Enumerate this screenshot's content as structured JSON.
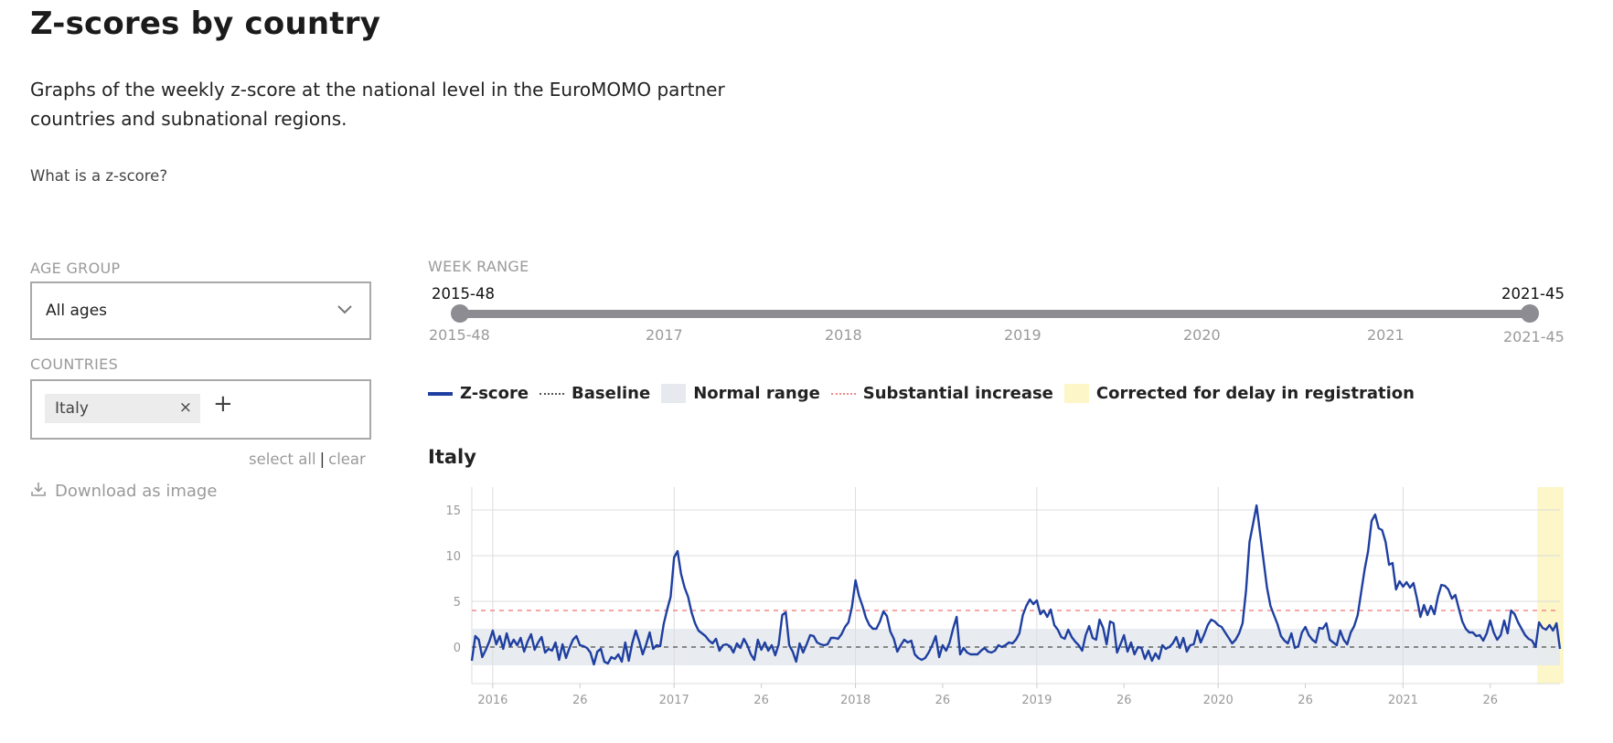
{
  "page": {
    "title": "Z-scores by country",
    "description": "Graphs of the weekly z-score at the national level in the EuroMOMO partner countries and subnational regions.",
    "what_is_link": "What is a z-score?"
  },
  "filters": {
    "age_group_label": "AGE GROUP",
    "age_group_value": "All ages",
    "countries_label": "COUNTRIES",
    "selected_countries": [
      "Italy"
    ],
    "chip_remove": "×",
    "add_country": "+",
    "select_all": "select all",
    "separator": "|",
    "clear": "clear",
    "download": "Download as image"
  },
  "week_range": {
    "label": "WEEK RANGE",
    "start": "2015-48",
    "end": "2021-45",
    "ticks": [
      "2015-48",
      "2017",
      "2018",
      "2019",
      "2020",
      "2021",
      "2021-45"
    ]
  },
  "legend": {
    "zscore": "Z-score",
    "baseline": "Baseline",
    "normal_range": "Normal range",
    "substantial": "Substantial increase",
    "corrected": "Corrected for delay in registration"
  },
  "colors": {
    "zscore": "#1f3fa0",
    "baseline": "#666666",
    "normal_range": "#e6eaee",
    "substantial": "#f0898b",
    "corrected": "#fdf6c8",
    "grid": "#dcdcdc"
  },
  "chart_data": {
    "type": "line",
    "title": "Italy",
    "x_unit": "ISO week",
    "x_start_week": "2015-48",
    "x_ticks": [
      {
        "label": "2016",
        "week": "2016-01"
      },
      {
        "label": "26",
        "week": "2016-26"
      },
      {
        "label": "2017",
        "week": "2017-01"
      },
      {
        "label": "26",
        "week": "2017-26"
      },
      {
        "label": "2018",
        "week": "2018-01"
      },
      {
        "label": "26",
        "week": "2018-26"
      },
      {
        "label": "2019",
        "week": "2019-01"
      },
      {
        "label": "26",
        "week": "2019-26"
      },
      {
        "label": "2020",
        "week": "2020-01"
      },
      {
        "label": "26",
        "week": "2020-26"
      },
      {
        "label": "2021",
        "week": "2021-01"
      },
      {
        "label": "26",
        "week": "2021-26"
      }
    ],
    "y_ticks": [
      0,
      5,
      10,
      15
    ],
    "ylim": [
      -4,
      17.5
    ],
    "baseline": 0,
    "normal_range": [
      -2,
      2
    ],
    "substantial_increase": 4,
    "corrected_weeks": [
      "2021-40",
      "2021-45"
    ],
    "series": [
      {
        "name": "Z-score",
        "values": [
          -1.5,
          1.2,
          0.8,
          -1.1,
          -0.3,
          0.6,
          1.8,
          0.3,
          1.2,
          -0.2,
          1.5,
          0.1,
          0.8,
          0.2,
          1.0,
          -0.5,
          0.6,
          1.4,
          -0.3,
          0.5,
          1.1,
          -0.6,
          -0.2,
          -0.4,
          0.5,
          -1.4,
          0.3,
          -1.2,
          -0.1,
          0.8,
          1.2,
          0.2,
          0.1,
          -0.1,
          -0.6,
          -1.9,
          -0.5,
          -0.2,
          -1.6,
          -1.8,
          -1.1,
          -1.3,
          -0.8,
          -1.6,
          0.5,
          -1.5,
          0.4,
          1.8,
          0.6,
          -0.8,
          0.3,
          1.6,
          -0.2,
          0.2,
          0.1,
          2.5,
          4.1,
          5.5,
          9.8,
          10.5,
          8.0,
          6.5,
          5.5,
          3.8,
          2.6,
          1.8,
          1.5,
          1.2,
          0.7,
          0.4,
          0.9,
          -0.4,
          0.2,
          0.3,
          0.1,
          -0.6,
          0.4,
          -0.1,
          0.9,
          0.2,
          -0.8,
          -1.4,
          0.8,
          -0.3,
          0.5,
          -0.4,
          0.2,
          -0.9,
          0.3,
          3.5,
          3.8,
          0.2,
          -0.5,
          -1.6,
          0.4,
          -0.6,
          0.3,
          1.3,
          1.2,
          0.5,
          0.3,
          0.2,
          0.3,
          1.0,
          1.0,
          0.9,
          1.4,
          2.2,
          2.7,
          4.4,
          7.3,
          5.6,
          4.5,
          3.2,
          2.4,
          2.0,
          2.0,
          2.8,
          3.9,
          3.4,
          1.7,
          0.9,
          -0.5,
          0.2,
          0.8,
          0.5,
          0.7,
          -0.8,
          -1.2,
          -1.4,
          -1.2,
          -0.6,
          0.2,
          1.2,
          -1.1,
          0.2,
          -0.4,
          0.5,
          2.0,
          3.3,
          -0.8,
          -0.1,
          -0.6,
          -0.8,
          -0.8,
          -0.8,
          -0.4,
          -0.1,
          -0.5,
          -0.6,
          -0.4,
          0.2,
          0.0,
          0.2,
          0.5,
          0.4,
          0.8,
          1.5,
          3.5,
          4.5,
          5.2,
          4.7,
          5.1,
          3.6,
          4.0,
          3.3,
          4.1,
          2.4,
          1.9,
          1.1,
          0.9,
          1.9,
          1.1,
          0.6,
          0.2,
          -0.4,
          1.3,
          2.3,
          1.0,
          0.8,
          3.0,
          2.1,
          0.3,
          2.8,
          2.6,
          -0.6,
          0.3,
          1.3,
          -0.5,
          0.5,
          -0.8,
          0.0,
          -0.1,
          -1.3,
          -0.4,
          -1.5,
          -0.7,
          -1.3,
          0.2,
          -0.2,
          0.0,
          0.4,
          1.1,
          -0.1,
          1.0,
          -0.5,
          0.2,
          0.3,
          1.8,
          0.5,
          1.4,
          2.4,
          3.0,
          2.8,
          2.4,
          2.2,
          1.6,
          1.0,
          0.4,
          0.8,
          1.5,
          2.6,
          6.2,
          11.5,
          13.5,
          15.5,
          12.5,
          9.5,
          6.5,
          4.5,
          3.5,
          2.5,
          1.2,
          0.7,
          0.4,
          1.5,
          -0.1,
          0.1,
          1.6,
          2.2,
          1.3,
          0.8,
          0.5,
          2.1,
          2.0,
          2.6,
          0.8,
          0.5,
          0.2,
          1.8,
          0.8,
          0.3,
          1.6,
          2.3,
          3.5,
          6.0,
          8.5,
          10.5,
          13.8,
          14.5,
          13.0,
          12.8,
          11.5,
          9.0,
          9.2,
          6.3,
          7.2,
          6.6,
          7.1,
          6.5,
          7.0,
          5.3,
          3.3,
          4.6,
          3.5,
          4.5,
          3.6,
          5.5,
          6.8,
          6.7,
          6.3,
          5.3,
          5.7,
          4.2,
          2.8,
          2.0,
          1.6,
          1.6,
          1.2,
          1.3,
          0.7,
          1.5,
          2.9,
          1.6,
          0.8,
          1.3,
          2.9,
          1.5,
          4.0,
          3.6,
          2.7,
          2.0,
          1.3,
          0.9,
          0.7,
          0.0,
          2.7,
          2.1,
          1.9,
          2.4,
          1.8,
          2.6,
          -0.2
        ]
      }
    ]
  }
}
